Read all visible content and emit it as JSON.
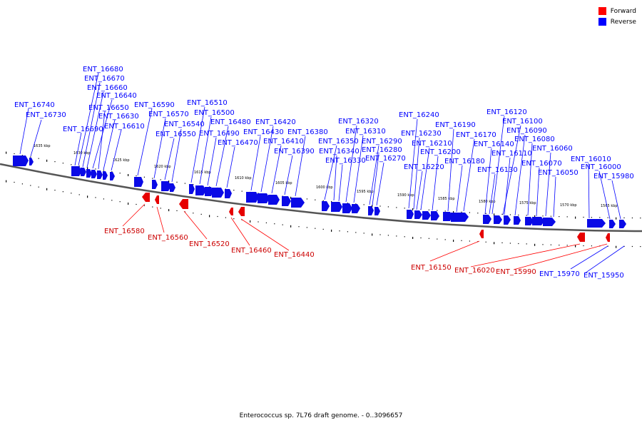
{
  "legend": [
    {
      "label": "Forward",
      "color": "#ff0000"
    },
    {
      "label": "Reverse",
      "color": "#0000ff"
    }
  ],
  "caption": "Enterococcus sp. 7L76 draft genome. - 0..3096657",
  "ruler_labels": [
    "1635 kbp",
    "1630 kbp",
    "1625 kbp",
    "1620 kbp",
    "1615 kbp",
    "1610 kbp",
    "1605 kbp",
    "1600 kbp",
    "1595 kbp",
    "1590 kbp",
    "1585 kbp",
    "1580 kbp",
    "1575 kbp",
    "1570 kbp",
    "1565 kbp"
  ],
  "reverse_genes": [
    "ENT_16740",
    "ENT_16730",
    "ENT_16690",
    "ENT_16680",
    "ENT_16670",
    "ENT_16660",
    "ENT_16640",
    "ENT_16650",
    "ENT_16630",
    "ENT_16610",
    "ENT_16590",
    "ENT_16570",
    "ENT_16550",
    "ENT_16540",
    "ENT_16510",
    "ENT_16500",
    "ENT_16490",
    "ENT_16480",
    "ENT_16470",
    "ENT_16420",
    "ENT_16430",
    "ENT_16410",
    "ENT_16390",
    "ENT_16380",
    "ENT_16320",
    "ENT_16310",
    "ENT_16350",
    "ENT_16340",
    "ENT_16330",
    "ENT_16290",
    "ENT_16280",
    "ENT_16270",
    "ENT_16240",
    "ENT_16230",
    "ENT_16210",
    "ENT_16220",
    "ENT_16200",
    "ENT_16190",
    "ENT_16170",
    "ENT_16180",
    "ENT_16120",
    "ENT_16100",
    "ENT_16090",
    "ENT_16140",
    "ENT_16110",
    "ENT_16080",
    "ENT_16130",
    "ENT_16060",
    "ENT_16070",
    "ENT_16050",
    "ENT_16010",
    "ENT_16000",
    "ENT_15980",
    "ENT_15970",
    "ENT_15950"
  ],
  "forward_genes": [
    "ENT_16580",
    "ENT_16560",
    "ENT_16520",
    "ENT_16460",
    "ENT_16440",
    "ENT_16150",
    "ENT_16020",
    "ENT_15990"
  ]
}
